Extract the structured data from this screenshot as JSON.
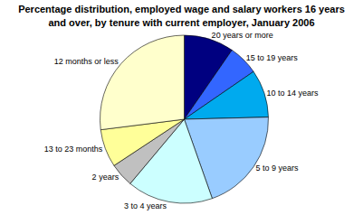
{
  "chart_data": {
    "type": "pie",
    "title": "Percentage distribution, employed wage and salary workers 16 years\nand over, by tenure with current employer, January 2006",
    "categories": [
      "20 years or more",
      "15 to 19 years",
      "10 to 14 years",
      "5 to 9 years",
      "3 to 4 years",
      "2 years",
      "13 to 23 months",
      "12 months or less"
    ],
    "values": [
      9.6,
      5.8,
      9.2,
      20.0,
      16.5,
      4.6,
      7.3,
      27.0
    ],
    "colors": [
      "#000080",
      "#3366ff",
      "#00aaee",
      "#99ccff",
      "#ccffff",
      "#c0c0c0",
      "#ffff99",
      "#ffffcc"
    ]
  }
}
